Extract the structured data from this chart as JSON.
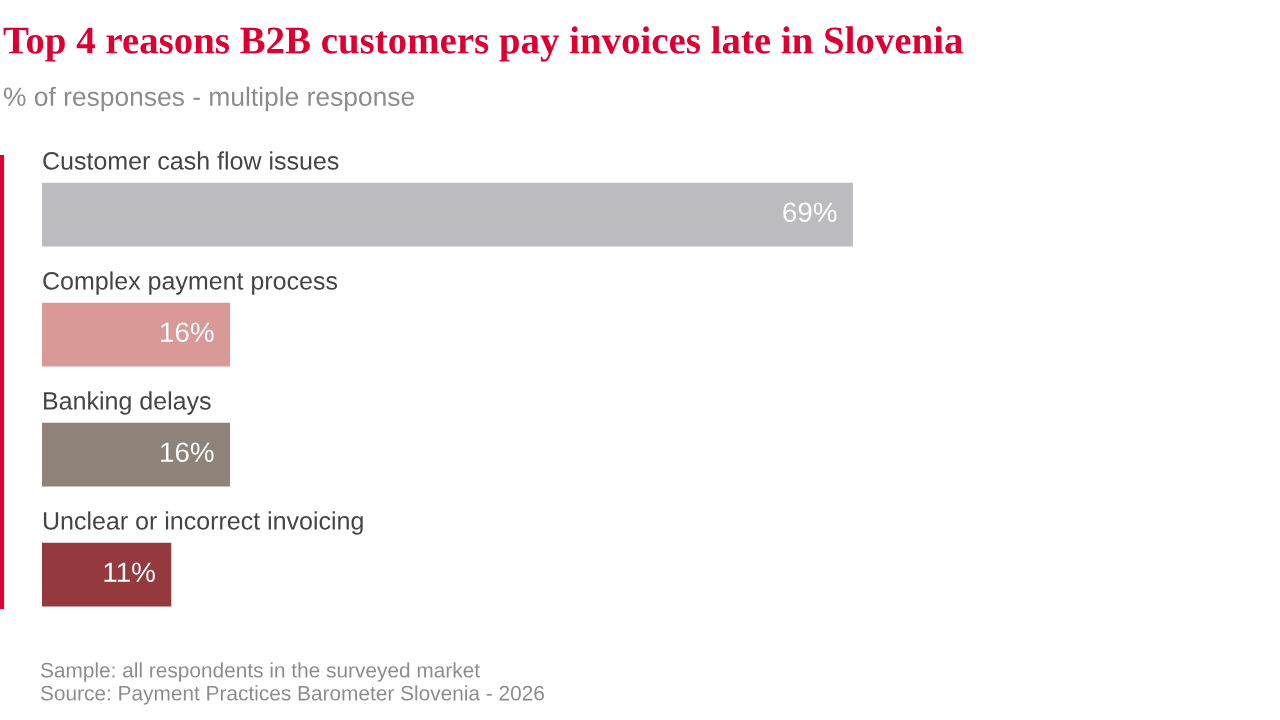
{
  "chart_data": {
    "type": "bar",
    "orientation": "horizontal",
    "title": "Top 4 reasons B2B customers pay invoices late in Slovenia",
    "subtitle": "% of responses - multiple response",
    "categories": [
      "Customer cash flow issues",
      "Complex payment process",
      "Banking delays",
      "Unclear or incorrect invoicing"
    ],
    "values": [
      69,
      16,
      16,
      11
    ],
    "colors": [
      "#bcbcc0",
      "#d99996",
      "#8f8279",
      "#943a3e"
    ],
    "value_labels": [
      "69%",
      "16%",
      "16%",
      "11%"
    ],
    "annotations": [
      "Sample: all respondents in the surveyed market",
      "Source: Payment Practices Barometer Slovenia - 2026"
    ],
    "data_labels": false
  }
}
